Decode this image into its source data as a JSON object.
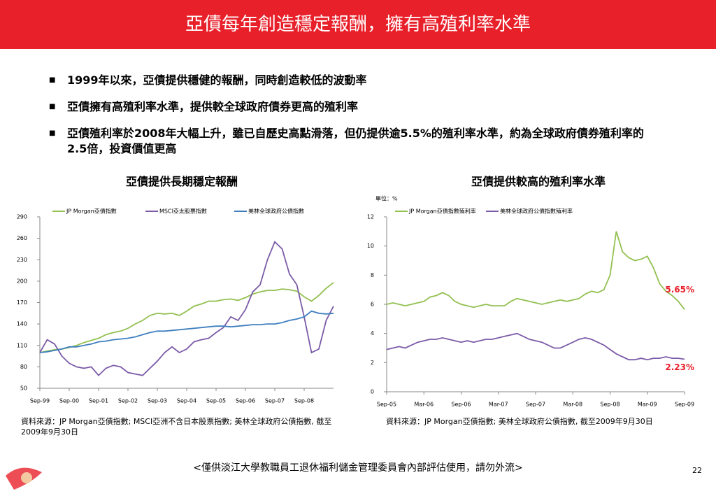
{
  "header": {
    "title": "亞債每年創造穩定報酬，擁有高殖利率水準"
  },
  "bullets": [
    "1999年以來，亞債提供穩健的報酬，同時創造較低的波動率",
    "亞債擁有高殖利率水準，提供較全球政府債券更高的殖利率",
    "亞債殖利率於2008年大幅上升，雖已自歷史高點滑落，但仍提供逾5.5%的殖利率水準，約為全球政府債券殖利率的2.5倍，投資價值更高"
  ],
  "chart_data": [
    {
      "type": "line",
      "title": "亞債提供長期穩定報酬",
      "categories": [
        "Sep-99",
        null,
        null,
        null,
        "Sep-00",
        null,
        null,
        null,
        "Sep-01",
        null,
        null,
        null,
        "Sep-02",
        null,
        null,
        null,
        "Sep-03",
        null,
        null,
        null,
        "Sep-04",
        null,
        null,
        null,
        "Sep-05",
        null,
        null,
        null,
        "Sep-06",
        null,
        null,
        null,
        "Sep-07",
        null,
        null,
        null,
        "Sep-08",
        null,
        null,
        null,
        null
      ],
      "series": [
        {
          "name": "JP Morgan亞債指數",
          "color": "#92c050",
          "values": [
            100,
            102,
            104,
            105,
            107,
            110,
            114,
            117,
            120,
            125,
            128,
            130,
            134,
            140,
            145,
            152,
            155,
            154,
            155,
            152,
            158,
            165,
            168,
            172,
            172,
            174,
            175,
            173,
            177,
            182,
            185,
            187,
            187,
            189,
            188,
            186,
            178,
            172,
            180,
            190,
            198
          ]
        },
        {
          "name": "MSCI亞太股票指數",
          "color": "#7b5ba8",
          "values": [
            100,
            118,
            112,
            95,
            85,
            80,
            78,
            80,
            68,
            78,
            82,
            80,
            72,
            70,
            68,
            78,
            88,
            100,
            108,
            100,
            105,
            115,
            118,
            120,
            128,
            135,
            150,
            145,
            160,
            185,
            195,
            230,
            255,
            245,
            210,
            195,
            150,
            100,
            105,
            145,
            165
          ]
        },
        {
          "name": "美林全球政府公債指數",
          "color": "#3f7fbf",
          "values": [
            100,
            101,
            103,
            105,
            108,
            108,
            110,
            112,
            115,
            116,
            118,
            119,
            120,
            122,
            125,
            128,
            130,
            130,
            131,
            132,
            133,
            134,
            135,
            136,
            137,
            137,
            136,
            137,
            138,
            139,
            139,
            140,
            140,
            142,
            145,
            147,
            150,
            158,
            155,
            154,
            155
          ]
        }
      ],
      "ylim": [
        50,
        290
      ],
      "yticks": [
        50,
        80,
        110,
        140,
        170,
        200,
        230,
        260,
        290
      ],
      "legend": "top",
      "grid": false,
      "source": "資料來源：JP Morgan亞債指數; MSCI亞洲不含日本股票指數; 美林全球政府公債指數, 截至2009年9月30日"
    },
    {
      "type": "line",
      "title": "亞債提供較高的殖利率水準",
      "unit": "單位：%",
      "categories": [
        "Sep-05",
        null,
        null,
        null,
        null,
        null,
        "Mar-06",
        null,
        null,
        null,
        null,
        null,
        "Sep-06",
        null,
        null,
        null,
        null,
        null,
        "Mar-07",
        null,
        null,
        null,
        null,
        null,
        "Sep-07",
        null,
        null,
        null,
        null,
        null,
        "Mar-08",
        null,
        null,
        null,
        null,
        null,
        "Sep-08",
        null,
        null,
        null,
        null,
        null,
        "Mar-09",
        null,
        null,
        null,
        null,
        null,
        "Sep-09"
      ],
      "series": [
        {
          "name": "JP Morgan亞債指數殖利率",
          "color": "#92c050",
          "values": [
            6.0,
            6.1,
            6.0,
            5.9,
            6.0,
            6.1,
            6.2,
            6.5,
            6.6,
            6.8,
            6.6,
            6.2,
            6.0,
            5.9,
            5.8,
            5.9,
            6.0,
            5.9,
            5.9,
            5.9,
            6.2,
            6.4,
            6.3,
            6.2,
            6.1,
            6.0,
            6.1,
            6.2,
            6.3,
            6.2,
            6.3,
            6.4,
            6.7,
            6.9,
            6.8,
            7.0,
            8.0,
            11.0,
            9.6,
            9.2,
            9.0,
            9.1,
            9.3,
            8.5,
            7.4,
            6.9,
            6.6,
            6.2,
            5.65
          ]
        },
        {
          "name": "美林全球政府公債指數殖利率",
          "color": "#7b5ba8",
          "values": [
            2.9,
            3.0,
            3.1,
            3.0,
            3.2,
            3.4,
            3.5,
            3.6,
            3.6,
            3.7,
            3.6,
            3.5,
            3.4,
            3.5,
            3.4,
            3.5,
            3.6,
            3.6,
            3.7,
            3.8,
            3.9,
            4.0,
            3.8,
            3.6,
            3.5,
            3.4,
            3.2,
            3.0,
            3.0,
            3.2,
            3.4,
            3.6,
            3.7,
            3.6,
            3.4,
            3.2,
            2.9,
            2.6,
            2.4,
            2.2,
            2.2,
            2.3,
            2.2,
            2.3,
            2.3,
            2.4,
            2.3,
            2.3,
            2.23
          ]
        }
      ],
      "annotations": [
        "5.65%",
        "2.23%"
      ],
      "annotation_color": "#e8202a",
      "ylim": [
        0,
        12
      ],
      "yticks": [
        0,
        2,
        4,
        6,
        8,
        10,
        12
      ],
      "legend": "top",
      "grid": false,
      "source": "資料來源：JP Morgan亞債指數; 美林全球政府公債指數, 截至2009年9月30日"
    }
  ],
  "footer": {
    "note": "<僅供淡江大學教職員工退休福利儲金管理委員會內部評估使用，請勿外流>",
    "page": "22"
  }
}
